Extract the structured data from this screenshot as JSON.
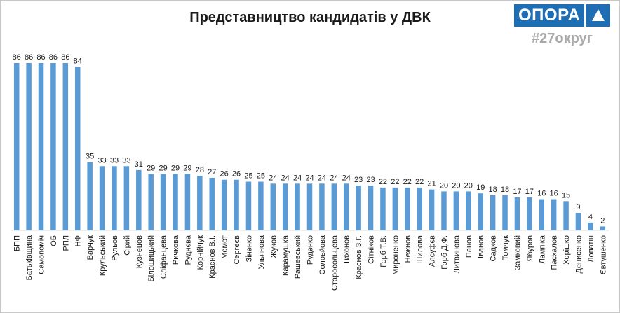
{
  "title": "Представництво кандидатів у ДВК",
  "logo": {
    "text": "ОПОРА",
    "icon": "triangle-up-icon",
    "color": "#1f6eb3"
  },
  "hashtag": "#27округ",
  "colors": {
    "bar": "#5b9bd5",
    "axis": "#d9d9d9"
  },
  "chart_data": {
    "type": "bar",
    "title": "Представництво кандидатів у ДВК",
    "xlabel": "",
    "ylabel": "",
    "grid": false,
    "legend": "none",
    "ylim": [
      0,
      86
    ],
    "categories": [
      "БПП",
      "Батьківщина",
      "Самопоміч",
      "ОБ",
      "РПЛ",
      "НФ",
      "Варчук",
      "Крульський",
      "Рульов",
      "Сірий",
      "Кузнецов",
      "Білошицький",
      "Єліфанцева",
      "Ричкова",
      "Руднєва",
      "Корнійчук",
      "Краснов В.І.",
      "Момот",
      "Сергеєв",
      "Зіненко",
      "Ульянова",
      "Жуков",
      "Карамушка",
      "Рашевський",
      "Руденко",
      "Соловйова",
      "Старосольцева",
      "Тихонов",
      "Краснов З.Г.",
      "Сітніков",
      "Горб Т.В.",
      "Мироненко",
      "Нежнов",
      "Шилова",
      "Алсуфєв",
      "Горб Д.Ф.",
      "Литвинова",
      "Панов",
      "Іванов",
      "Садков",
      "Томчук",
      "Замковий",
      "Ябуров",
      "Лампіка",
      "Пасхалов",
      "Хорішко",
      "Денисенко",
      "Лопатін",
      "Євтушенко"
    ],
    "values": [
      86,
      86,
      86,
      86,
      86,
      84,
      35,
      33,
      33,
      33,
      31,
      29,
      29,
      29,
      29,
      28,
      27,
      26,
      26,
      25,
      25,
      24,
      24,
      24,
      24,
      24,
      24,
      24,
      23,
      23,
      22,
      22,
      22,
      22,
      21,
      20,
      20,
      20,
      19,
      18,
      18,
      17,
      17,
      16,
      16,
      15,
      9,
      4,
      2
    ]
  }
}
